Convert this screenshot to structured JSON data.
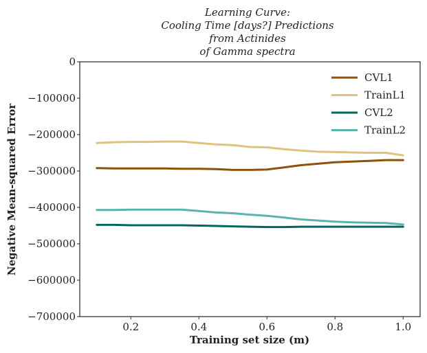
{
  "chart_data": {
    "type": "line",
    "title_lines": [
      "Learning Curve:",
      "Cooling Time [days?] Predictions",
      "from Actinides",
      "of Gamma spectra"
    ],
    "xlabel": "Training set size (m)",
    "ylabel": "Negative Mean-squared Error",
    "xlim": [
      0.05,
      1.05
    ],
    "ylim": [
      -700000,
      0
    ],
    "xticks": [
      0.2,
      0.4,
      0.6,
      0.8,
      1.0
    ],
    "xtick_labels": [
      "0.2",
      "0.4",
      "0.6",
      "0.8",
      "1.0"
    ],
    "yticks": [
      0,
      -100000,
      -200000,
      -300000,
      -400000,
      -500000,
      -600000,
      -700000
    ],
    "ytick_labels": [
      "0",
      "−100000",
      "−200000",
      "−300000",
      "−400000",
      "−500000",
      "−600000",
      "−700000"
    ],
    "grid": false,
    "legend_position": "top-right",
    "series": [
      {
        "name": "CVL1",
        "color": "#8c510a",
        "x": [
          0.1,
          0.15,
          0.2,
          0.25,
          0.3,
          0.35,
          0.4,
          0.45,
          0.5,
          0.55,
          0.6,
          0.65,
          0.7,
          0.75,
          0.8,
          0.85,
          0.9,
          0.95,
          1.0
        ],
        "y": [
          -292000,
          -293000,
          -293000,
          -293000,
          -293000,
          -294000,
          -294000,
          -295000,
          -297000,
          -297000,
          -296000,
          -290000,
          -284000,
          -280000,
          -276000,
          -274000,
          -272000,
          -270000,
          -270000
        ]
      },
      {
        "name": "TrainL1",
        "color": "#dfc27d",
        "x": [
          0.1,
          0.15,
          0.2,
          0.25,
          0.3,
          0.35,
          0.4,
          0.45,
          0.5,
          0.55,
          0.6,
          0.65,
          0.7,
          0.75,
          0.8,
          0.85,
          0.9,
          0.95,
          1.0
        ],
        "y": [
          -223000,
          -221000,
          -220000,
          -220000,
          -219000,
          -219000,
          -223000,
          -227000,
          -229000,
          -234000,
          -235000,
          -240000,
          -244000,
          -247000,
          -248000,
          -249000,
          -250000,
          -250000,
          -257000
        ]
      },
      {
        "name": "CVL2",
        "color": "#01665e",
        "x": [
          0.1,
          0.15,
          0.2,
          0.25,
          0.3,
          0.35,
          0.4,
          0.45,
          0.5,
          0.55,
          0.6,
          0.65,
          0.7,
          0.75,
          0.8,
          0.85,
          0.9,
          0.95,
          1.0
        ],
        "y": [
          -448000,
          -448000,
          -449000,
          -449000,
          -449000,
          -449000,
          -450000,
          -451000,
          -452000,
          -453000,
          -454000,
          -454000,
          -453000,
          -453000,
          -453000,
          -453000,
          -453000,
          -453000,
          -453000
        ]
      },
      {
        "name": "TrainL2",
        "color": "#5ab4ac",
        "x": [
          0.1,
          0.15,
          0.2,
          0.25,
          0.3,
          0.35,
          0.4,
          0.45,
          0.5,
          0.55,
          0.6,
          0.65,
          0.7,
          0.75,
          0.8,
          0.85,
          0.9,
          0.95,
          1.0
        ],
        "y": [
          -407000,
          -407000,
          -406000,
          -406000,
          -406000,
          -406000,
          -410000,
          -414000,
          -416000,
          -420000,
          -423000,
          -428000,
          -433000,
          -436000,
          -439000,
          -441000,
          -442000,
          -443000,
          -447000
        ]
      }
    ]
  }
}
